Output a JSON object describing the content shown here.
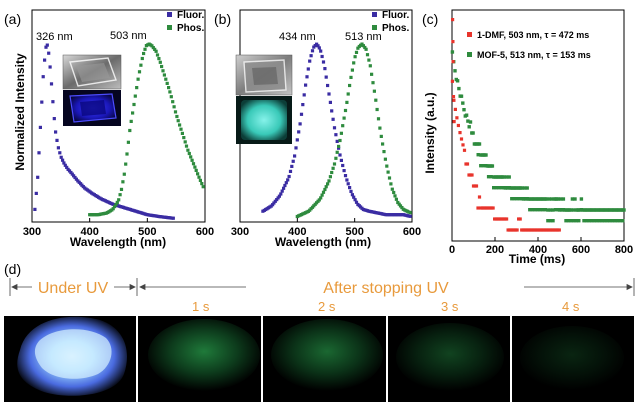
{
  "chart_data": [
    {
      "panel": "(a)",
      "type": "line",
      "xlabel": "Wavelength (nm)",
      "ylabel": "Normalized Intensity",
      "xlim": [
        300,
        600
      ],
      "xticks": [
        300,
        400,
        500,
        600
      ],
      "legend": {
        "placement": "top-right",
        "entries": [
          "Fluor.",
          "Phos."
        ]
      },
      "annotations": [
        "326 nm",
        "503 nm"
      ],
      "series": [
        {
          "name": "Fluor.",
          "color": "#3a2ca3",
          "x": [
            305,
            310,
            315,
            320,
            324,
            326,
            328,
            332,
            336,
            340,
            345,
            350,
            356,
            362,
            370,
            380,
            392,
            405,
            420,
            440,
            460,
            480,
            500,
            520,
            545
          ],
          "y": [
            0.06,
            0.25,
            0.55,
            0.85,
            0.98,
            1.0,
            0.98,
            0.85,
            0.68,
            0.52,
            0.42,
            0.36,
            0.32,
            0.29,
            0.26,
            0.22,
            0.18,
            0.15,
            0.12,
            0.09,
            0.07,
            0.05,
            0.03,
            0.02,
            0.01
          ]
        },
        {
          "name": "Phos.",
          "color": "#2e8b3e",
          "x": [
            400,
            415,
            430,
            440,
            450,
            455,
            460,
            465,
            470,
            478,
            485,
            492,
            498,
            503,
            508,
            515,
            522,
            530,
            540,
            550,
            560,
            570,
            580,
            590,
            598
          ],
          "y": [
            0.03,
            0.03,
            0.04,
            0.06,
            0.11,
            0.17,
            0.26,
            0.38,
            0.52,
            0.68,
            0.82,
            0.93,
            0.99,
            1.0,
            0.99,
            0.96,
            0.9,
            0.82,
            0.72,
            0.6,
            0.5,
            0.4,
            0.32,
            0.24,
            0.18
          ]
        }
      ]
    },
    {
      "panel": "(b)",
      "type": "line",
      "xlabel": "Wavelength (nm)",
      "xlim": [
        300,
        600
      ],
      "xticks": [
        300,
        400,
        500,
        600
      ],
      "legend": {
        "placement": "top-right",
        "entries": [
          "Fluor.",
          "Phos."
        ]
      },
      "annotations": [
        "434 nm",
        "513 nm"
      ],
      "series": [
        {
          "name": "Fluor.",
          "color": "#3a2ca3",
          "x": [
            340,
            355,
            370,
            385,
            395,
            405,
            415,
            422,
            428,
            434,
            440,
            447,
            455,
            465,
            475,
            485,
            495,
            505,
            515,
            525,
            540,
            555,
            570,
            585,
            598
          ],
          "y": [
            0.05,
            0.08,
            0.14,
            0.24,
            0.36,
            0.55,
            0.78,
            0.91,
            0.98,
            1.0,
            0.97,
            0.88,
            0.72,
            0.52,
            0.36,
            0.24,
            0.15,
            0.09,
            0.06,
            0.05,
            0.04,
            0.03,
            0.03,
            0.03,
            0.02
          ]
        },
        {
          "name": "Phos.",
          "color": "#2e8b3e",
          "x": [
            400,
            420,
            440,
            455,
            465,
            475,
            485,
            493,
            500,
            506,
            513,
            520,
            527,
            535,
            545,
            555,
            565,
            575,
            585,
            598
          ],
          "y": [
            0.02,
            0.05,
            0.12,
            0.22,
            0.32,
            0.46,
            0.64,
            0.8,
            0.92,
            0.98,
            1.0,
            0.97,
            0.88,
            0.72,
            0.5,
            0.32,
            0.18,
            0.1,
            0.06,
            0.04
          ]
        }
      ]
    },
    {
      "panel": "(c)",
      "type": "scatter",
      "xlabel": "Time (ms)",
      "ylabel": "Intensity (a.u.)",
      "xlim": [
        0,
        800
      ],
      "xticks": [
        0,
        200,
        400,
        600,
        800
      ],
      "legend": {
        "placement": "top-right",
        "entries": [
          "1-DMF, 503 nm, τ = 472 ms",
          "MOF-5, 513 nm, τ = 153 ms"
        ]
      },
      "series": [
        {
          "name": "1-DMF, 503 nm, τ = 472 ms",
          "color": "#e8342c",
          "tau_ms": 472,
          "tmax_ms": 500
        },
        {
          "name": "MOF-5, 513 nm, τ = 153 ms",
          "color": "#2e8b3e",
          "tau_ms": 153,
          "tmax_ms": 800
        }
      ]
    }
  ],
  "photo_panel": {
    "label": "(d)",
    "under_uv": "Under UV",
    "after_uv": "After stopping UV",
    "times": [
      "1 s",
      "2 s",
      "3 s",
      "4 s"
    ]
  }
}
